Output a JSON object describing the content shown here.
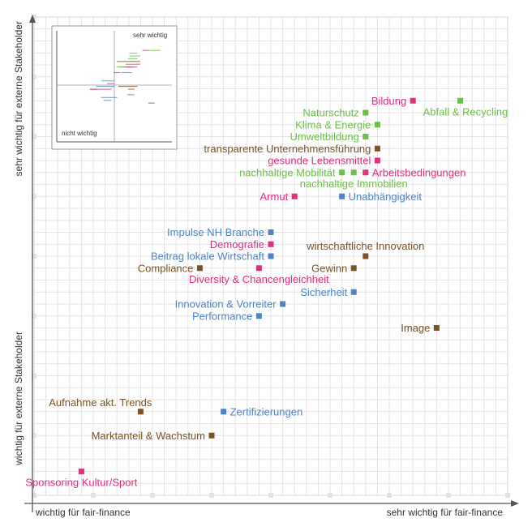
{
  "chart_data": {
    "type": "scatter",
    "title": "",
    "xlabel_low": "wichtig für fair-finance",
    "xlabel_high": "sehr wichtig für fair-finance",
    "ylabel_low": "wichtig für externe Stakeholder",
    "ylabel_high": "sehr wichtig für externe Stakeholder",
    "xlim": [
      0,
      40
    ],
    "ylim": [
      0,
      40
    ],
    "grid": true,
    "categories": {
      "oekonomisch": "#7a5326",
      "oekologisch": "#6cc04a",
      "sozial": "#e0307e",
      "governance": "#4f84c4"
    },
    "points": [
      {
        "label": "Bildung",
        "x": 32,
        "y": 33,
        "cat": "sozial",
        "side": "left"
      },
      {
        "label": "Abfall & Recycling",
        "x": 36,
        "y": 33,
        "cat": "oekologisch",
        "side": "below-right"
      },
      {
        "label": "Naturschutz",
        "x": 28,
        "y": 32,
        "cat": "oekologisch",
        "side": "left"
      },
      {
        "label": "Klima & Energie",
        "x": 29,
        "y": 31,
        "cat": "oekologisch",
        "side": "left"
      },
      {
        "label": "Umweltbildung",
        "x": 28,
        "y": 30,
        "cat": "oekologisch",
        "side": "left"
      },
      {
        "label": "transparente Unternehmensführung",
        "x": 29,
        "y": 29,
        "cat": "oekonomisch",
        "side": "left"
      },
      {
        "label": "gesunde Lebensmittel",
        "x": 29,
        "y": 28,
        "cat": "sozial",
        "side": "left"
      },
      {
        "label": "nachhaltige Mobilität",
        "x": 26,
        "y": 27,
        "cat": "oekologisch",
        "side": "left"
      },
      {
        "label": "nachhaltige Immobilien",
        "x": 27,
        "y": 27,
        "cat": "oekologisch",
        "side": "below"
      },
      {
        "label": "Arbeitsbedingungen",
        "x": 28,
        "y": 27,
        "cat": "sozial",
        "side": "right"
      },
      {
        "label": "Armut",
        "x": 22,
        "y": 25,
        "cat": "sozial",
        "side": "left"
      },
      {
        "label": "Unabhängigkeit",
        "x": 26,
        "y": 25,
        "cat": "governance",
        "side": "right"
      },
      {
        "label": "Impulse NH Branche",
        "x": 20,
        "y": 22,
        "cat": "governance",
        "side": "left"
      },
      {
        "label": "Demografie",
        "x": 20,
        "y": 21,
        "cat": "sozial",
        "side": "left"
      },
      {
        "label": "Beitrag lokale Wirtschaft",
        "x": 20,
        "y": 20,
        "cat": "governance",
        "side": "left"
      },
      {
        "label": "wirtschaftliche Innovation",
        "x": 28,
        "y": 20,
        "cat": "oekonomisch",
        "side": "above"
      },
      {
        "label": "Compliance",
        "x": 14,
        "y": 19,
        "cat": "oekonomisch",
        "side": "left"
      },
      {
        "label": "Diversity & Chancengleichheit",
        "x": 19,
        "y": 19,
        "cat": "sozial",
        "side": "below"
      },
      {
        "label": "Gewinn",
        "x": 27,
        "y": 19,
        "cat": "oekonomisch",
        "side": "left"
      },
      {
        "label": "Sicherheit",
        "x": 27,
        "y": 17,
        "cat": "governance",
        "side": "left"
      },
      {
        "label": "Innovation & Vorreiter",
        "x": 21,
        "y": 16,
        "cat": "governance",
        "side": "left"
      },
      {
        "label": "Performance",
        "x": 19,
        "y": 15,
        "cat": "governance",
        "side": "left"
      },
      {
        "label": "Image",
        "x": 34,
        "y": 14,
        "cat": "oekonomisch",
        "side": "left"
      },
      {
        "label": "Aufnahme akt. Trends",
        "x": 9,
        "y": 7,
        "cat": "oekonomisch",
        "side": "above-left"
      },
      {
        "label": "Zertifizierungen",
        "x": 16,
        "y": 7,
        "cat": "governance",
        "side": "right"
      },
      {
        "label": "Marktanteil & Wachstum",
        "x": 15,
        "y": 5,
        "cat": "oekonomisch",
        "side": "left"
      },
      {
        "label": "Sponsoring Kultur/Sport",
        "x": 4,
        "y": 2,
        "cat": "sozial",
        "side": "below"
      }
    ]
  },
  "inset": {
    "label_high": "sehr wichtig",
    "label_low": "nicht wichtig"
  }
}
